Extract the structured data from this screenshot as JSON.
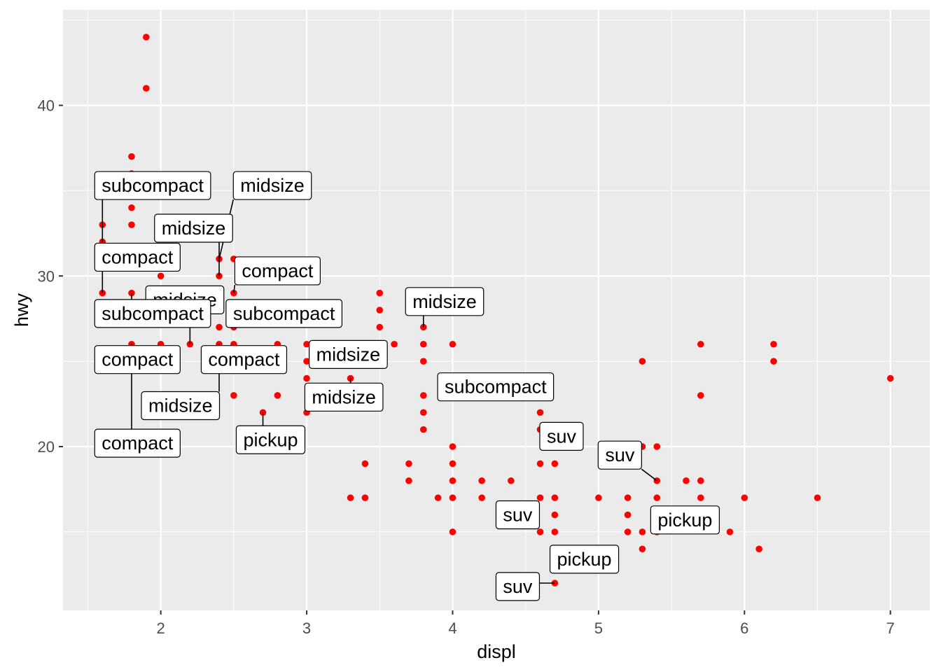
{
  "chart_data": {
    "type": "scatter",
    "xlabel": "displ",
    "ylabel": "hwy",
    "xlim": [
      1.33,
      7.27
    ],
    "ylim": [
      10.4,
      45.6
    ],
    "x_ticks": [
      2,
      3,
      4,
      5,
      6,
      7
    ],
    "y_ticks": [
      20,
      30,
      40
    ],
    "x_tick_labels": [
      "2",
      "3",
      "4",
      "5",
      "6",
      "7"
    ],
    "y_tick_labels": [
      "20",
      "30",
      "40"
    ],
    "grid": true,
    "point_color": "#ff0000",
    "panel_color": "#ebebeb",
    "points": [
      [
        1.9,
        44
      ],
      [
        1.9,
        41
      ],
      [
        1.8,
        37
      ],
      [
        1.8,
        36
      ],
      [
        1.8,
        35
      ],
      [
        1.8,
        34
      ],
      [
        1.8,
        33
      ],
      [
        1.6,
        33
      ],
      [
        1.6,
        32
      ],
      [
        2.0,
        31
      ],
      [
        2.0,
        30
      ],
      [
        2.0,
        29
      ],
      [
        1.8,
        29
      ],
      [
        1.6,
        29
      ],
      [
        1.8,
        26
      ],
      [
        2.0,
        26
      ],
      [
        2.2,
        26
      ],
      [
        2.4,
        31
      ],
      [
        2.5,
        31
      ],
      [
        2.4,
        30
      ],
      [
        2.4,
        29
      ],
      [
        2.5,
        29
      ],
      [
        2.5,
        28
      ],
      [
        2.4,
        27
      ],
      [
        2.5,
        27
      ],
      [
        2.4,
        26
      ],
      [
        2.5,
        26
      ],
      [
        2.5,
        23
      ],
      [
        2.8,
        26
      ],
      [
        2.8,
        23
      ],
      [
        2.7,
        22
      ],
      [
        3.0,
        26
      ],
      [
        3.1,
        26
      ],
      [
        3.0,
        25
      ],
      [
        3.0,
        24
      ],
      [
        3.3,
        24
      ],
      [
        3.0,
        22
      ],
      [
        3.5,
        29
      ],
      [
        3.5,
        28
      ],
      [
        3.5,
        27
      ],
      [
        3.5,
        26
      ],
      [
        3.6,
        26
      ],
      [
        3.8,
        27
      ],
      [
        3.8,
        26
      ],
      [
        3.8,
        25
      ],
      [
        3.8,
        23
      ],
      [
        3.8,
        22
      ],
      [
        3.8,
        21
      ],
      [
        4.0,
        26
      ],
      [
        4.0,
        24
      ],
      [
        4.0,
        20
      ],
      [
        4.0,
        19
      ],
      [
        4.0,
        18
      ],
      [
        4.0,
        17
      ],
      [
        4.0,
        15
      ],
      [
        3.3,
        17
      ],
      [
        3.4,
        17
      ],
      [
        3.4,
        19
      ],
      [
        3.7,
        19
      ],
      [
        3.7,
        18
      ],
      [
        3.9,
        17
      ],
      [
        4.2,
        18
      ],
      [
        4.2,
        17
      ],
      [
        4.4,
        18
      ],
      [
        4.6,
        22
      ],
      [
        4.6,
        21
      ],
      [
        4.6,
        19
      ],
      [
        4.6,
        17
      ],
      [
        4.6,
        15
      ],
      [
        4.7,
        19
      ],
      [
        4.7,
        17
      ],
      [
        4.7,
        16
      ],
      [
        4.7,
        15
      ],
      [
        4.7,
        14
      ],
      [
        4.7,
        12
      ],
      [
        5.0,
        17
      ],
      [
        5.2,
        17
      ],
      [
        5.2,
        16
      ],
      [
        5.2,
        15
      ],
      [
        5.3,
        25
      ],
      [
        5.3,
        20
      ],
      [
        5.3,
        15
      ],
      [
        5.3,
        14
      ],
      [
        5.4,
        20
      ],
      [
        5.4,
        18
      ],
      [
        5.4,
        17
      ],
      [
        5.4,
        15
      ],
      [
        5.6,
        18
      ],
      [
        5.7,
        26
      ],
      [
        5.7,
        23
      ],
      [
        5.7,
        18
      ],
      [
        5.7,
        17
      ],
      [
        5.9,
        15
      ],
      [
        6.0,
        17
      ],
      [
        6.1,
        14
      ],
      [
        6.2,
        26
      ],
      [
        6.2,
        25
      ],
      [
        6.5,
        17
      ],
      [
        7.0,
        24
      ]
    ],
    "labels": [
      {
        "text": "subcompact",
        "point": [
          1.6,
          32
        ],
        "anchor": [
          1.6,
          35.3
        ]
      },
      {
        "text": "midsize",
        "point": [
          2.4,
          31
        ],
        "anchor": [
          2.55,
          35.3
        ]
      },
      {
        "text": "midsize",
        "point": [
          2.4,
          30
        ],
        "anchor": [
          2.01,
          32.8
        ]
      },
      {
        "text": "compact",
        "point": [
          1.6,
          29
        ],
        "anchor": [
          1.6,
          31.1
        ]
      },
      {
        "text": "compact",
        "point": [
          2.5,
          29
        ],
        "anchor": [
          2.56,
          30.3
        ]
      },
      {
        "text": "midsize",
        "point": [
          2.2,
          26
        ],
        "anchor": [
          1.95,
          28.6
        ]
      },
      {
        "text": "subcompact",
        "point": [
          1.8,
          29
        ],
        "anchor": [
          1.6,
          27.8
        ]
      },
      {
        "text": "subcompact",
        "point": [
          2.5,
          27
        ],
        "anchor": [
          2.5,
          27.8
        ]
      },
      {
        "text": "midsize",
        "point": [
          3.8,
          27
        ],
        "anchor": [
          3.73,
          28.5
        ]
      },
      {
        "text": "compact",
        "point": [
          2.0,
          26
        ],
        "anchor": [
          1.6,
          25.1
        ]
      },
      {
        "text": "compact",
        "point": [
          2.4,
          26
        ],
        "anchor": [
          2.33,
          25.1
        ]
      },
      {
        "text": "midsize",
        "point": [
          3.0,
          26
        ],
        "anchor": [
          3.07,
          25.4
        ]
      },
      {
        "text": "subcompact",
        "point": [
          4.0,
          24
        ],
        "anchor": [
          3.95,
          23.5
        ]
      },
      {
        "text": "midsize",
        "point": [
          2.4,
          26
        ],
        "anchor": [
          1.92,
          22.4
        ]
      },
      {
        "text": "midsize",
        "point": [
          3.3,
          24
        ],
        "anchor": [
          3.04,
          22.9
        ]
      },
      {
        "text": "compact",
        "point": [
          1.8,
          26
        ],
        "anchor": [
          1.6,
          20.2
        ]
      },
      {
        "text": "pickup",
        "point": [
          2.7,
          22
        ],
        "anchor": [
          2.57,
          20.4
        ]
      },
      {
        "text": "suv",
        "point": [
          4.6,
          21
        ],
        "anchor": [
          4.65,
          20.6
        ]
      },
      {
        "text": "suv",
        "point": [
          5.4,
          18
        ],
        "anchor": [
          5.05,
          19.5
        ]
      },
      {
        "text": "suv",
        "point": [
          4.6,
          15
        ],
        "anchor": [
          4.35,
          16.0
        ]
      },
      {
        "text": "pickup",
        "point": [
          5.4,
          15
        ],
        "anchor": [
          5.41,
          15.7
        ]
      },
      {
        "text": "pickup",
        "point": [
          4.7,
          14
        ],
        "anchor": [
          4.72,
          13.4
        ]
      },
      {
        "text": "suv",
        "point": [
          4.7,
          12
        ],
        "anchor": [
          4.35,
          11.8
        ]
      }
    ]
  }
}
